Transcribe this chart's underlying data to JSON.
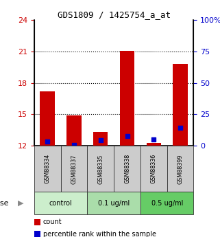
{
  "title": "GDS1809 / 1425754_a_at",
  "samples": [
    "GSM88334",
    "GSM88337",
    "GSM88335",
    "GSM88338",
    "GSM88336",
    "GSM88399"
  ],
  "red_values": [
    17.2,
    14.9,
    13.3,
    21.05,
    12.3,
    19.85
  ],
  "blue_values": [
    12.42,
    12.1,
    12.52,
    12.9,
    12.6,
    13.7
  ],
  "bar_bottom": 12,
  "ylim_left": [
    12,
    24
  ],
  "ylim_right": [
    0,
    100
  ],
  "yticks_left": [
    12,
    15,
    18,
    21,
    24
  ],
  "yticks_right": [
    0,
    25,
    50,
    75,
    100
  ],
  "right_tick_labels": [
    "0",
    "25",
    "50",
    "75",
    "100%"
  ],
  "red_color": "#cc0000",
  "blue_color": "#0000cc",
  "bar_width": 0.55,
  "groups": [
    {
      "label": "control",
      "indices": [
        0,
        1
      ],
      "color": "#cceecc"
    },
    {
      "label": "0.1 ug/ml",
      "indices": [
        2,
        3
      ],
      "color": "#aaddaa"
    },
    {
      "label": "0.5 ug/ml",
      "indices": [
        4,
        5
      ],
      "color": "#66cc66"
    }
  ],
  "left_tick_color": "#cc0000",
  "right_tick_color": "#0000cc",
  "dose_label": "dose",
  "legend_count": "count",
  "legend_pct": "percentile rank within the sample",
  "sample_box_color": "#cccccc",
  "sample_box_edge": "#333333"
}
